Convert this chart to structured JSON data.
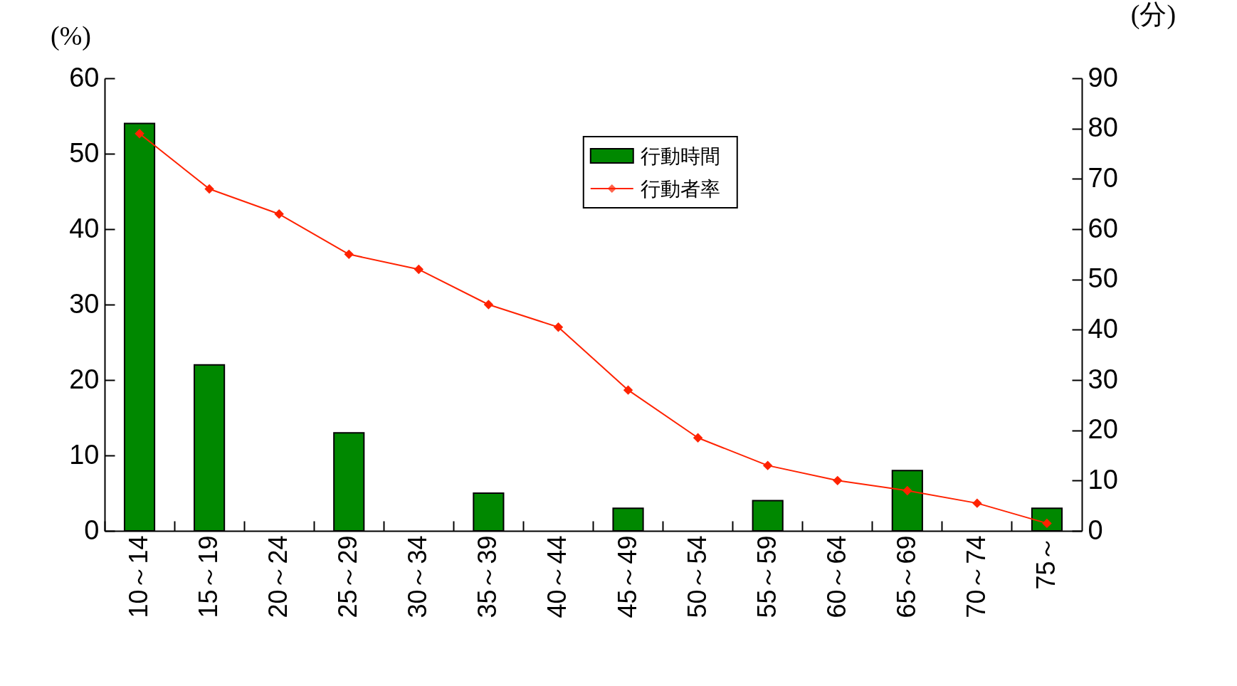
{
  "chart_data": {
    "type": "bar",
    "categories": [
      "10～14",
      "15～19",
      "20～24",
      "25～29",
      "30～34",
      "35～39",
      "40～44",
      "45～49",
      "50～54",
      "55～59",
      "60～64",
      "65～69",
      "70～74",
      "75～"
    ],
    "series": [
      {
        "name": "行動時間",
        "color": "#008800",
        "values": [
          54,
          22,
          0,
          13,
          0,
          5,
          0,
          3,
          0,
          4,
          0,
          8,
          0,
          3
        ]
      },
      {
        "name": "行動者率",
        "type": "line",
        "axis": "y2",
        "color": "#ff2200",
        "marker": "diamond",
        "values": [
          79,
          68,
          63,
          55,
          52,
          45,
          40.5,
          28,
          18.5,
          13,
          10,
          8,
          5.5,
          1.5
        ]
      }
    ],
    "ylabel": "(%)",
    "y2label": "(分)",
    "ylim": [
      0,
      60
    ],
    "yticks": [
      0,
      10,
      20,
      30,
      40,
      50,
      60
    ],
    "y2lim": [
      0,
      90
    ],
    "y2ticks": [
      0,
      10,
      20,
      30,
      40,
      50,
      60,
      70,
      80,
      90
    ],
    "legend": "top",
    "grid": false
  }
}
